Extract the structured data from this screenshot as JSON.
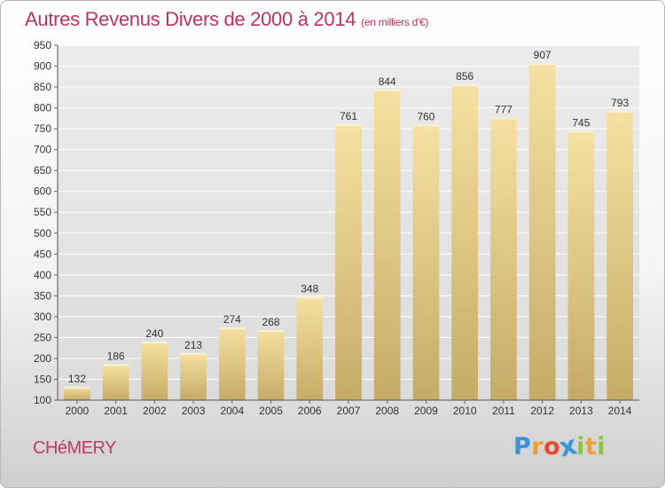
{
  "header": {
    "title": "Autres Revenus Divers de 2000 à 2014",
    "unit": "(en milliers d'€)"
  },
  "footer": {
    "city": "CHéMERY",
    "logo_letters": [
      "P",
      "r",
      "o",
      "x",
      "i",
      "t",
      "i"
    ],
    "logo_colors": [
      "#3d8fd6",
      "#f0a030",
      "#e8492f",
      "#3a9ad8",
      "#8cc63f",
      "#f0a030",
      "#8cc63f"
    ]
  },
  "chart_data": {
    "type": "bar",
    "title": "Autres Revenus Divers de 2000 à 2014",
    "subtitle": "(en milliers d'€)",
    "xlabel": "",
    "ylabel": "",
    "categories": [
      "2000",
      "2001",
      "2002",
      "2003",
      "2004",
      "2005",
      "2006",
      "2007",
      "2008",
      "2009",
      "2010",
      "2011",
      "2012",
      "2013",
      "2014"
    ],
    "values": [
      132,
      186,
      240,
      213,
      274,
      268,
      348,
      761,
      844,
      760,
      856,
      777,
      907,
      745,
      793
    ],
    "ylim": [
      100,
      950
    ],
    "yticks": [
      100,
      150,
      200,
      250,
      300,
      350,
      400,
      450,
      500,
      550,
      600,
      650,
      700,
      750,
      800,
      850,
      900,
      950
    ],
    "grid": true,
    "legend": "none",
    "colors": {
      "bar_top": "#f6e1a2",
      "bar_bottom": "#c6ab66",
      "grid": "#ffffff",
      "plot_bg_top": "#ececec",
      "plot_bg_bottom": "#dcdcdc"
    }
  }
}
